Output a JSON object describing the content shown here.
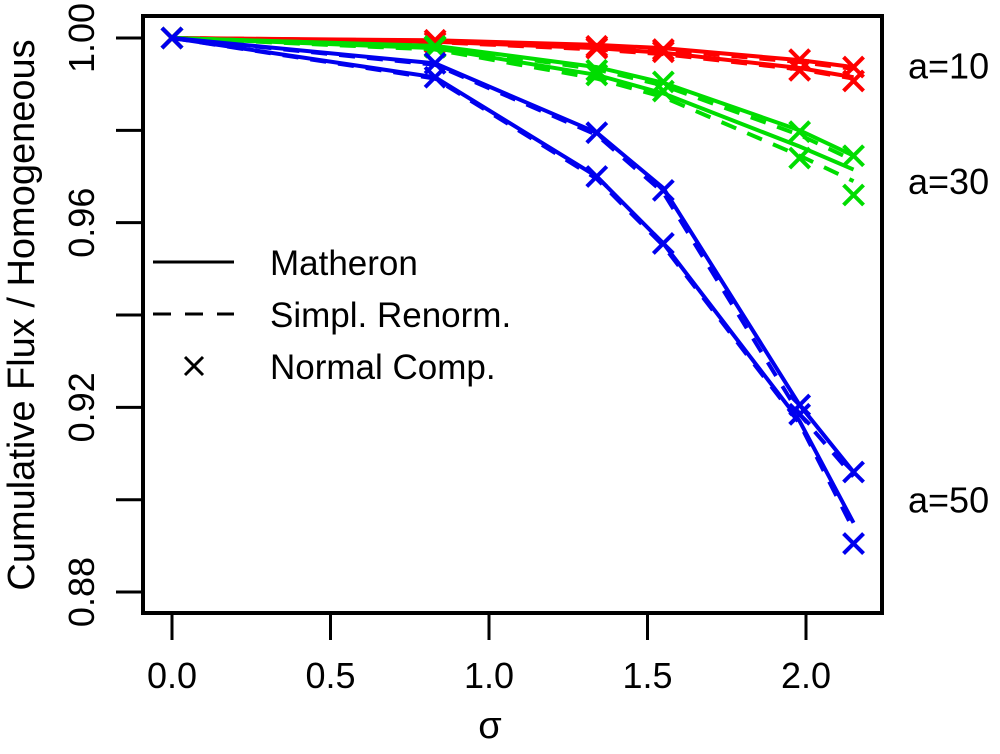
{
  "chart_data": {
    "type": "line",
    "title": "",
    "xlabel": "σ",
    "ylabel": "Cumulative Flux / Homogeneous",
    "xlim": [
      -0.08,
      2.25
    ],
    "ylim": [
      0.874,
      1.005
    ],
    "x_ticks": [
      0.0,
      0.5,
      1.0,
      1.5,
      2.0
    ],
    "x_tick_labels": [
      "0.0",
      "0.5",
      "1.0",
      "1.5",
      "2.0"
    ],
    "y_ticks": [
      0.88,
      0.9,
      0.92,
      0.94,
      0.96,
      0.98,
      1.0
    ],
    "y_tick_labels": [
      "0.88",
      "",
      "0.92",
      "",
      "0.96",
      "",
      "1.00"
    ],
    "grid": false,
    "legend": {
      "position": "center-left",
      "entries": [
        {
          "label": "Matheron",
          "style": "solid"
        },
        {
          "label": "Simpl. Renorm.",
          "style": "dashed"
        },
        {
          "label": "Normal Comp.",
          "style": "cross"
        }
      ]
    },
    "annotations": [
      {
        "text": "a=10",
        "y": 0.994
      },
      {
        "text": "a=30",
        "y": 0.969
      },
      {
        "text": "a=50",
        "y": 0.9
      }
    ],
    "x": [
      0.0,
      0.83,
      1.34,
      1.55,
      1.98,
      2.15
    ],
    "groups": [
      {
        "name": "a=10",
        "color": "#ff0000",
        "curves": [
          {
            "matheron": [
              1.0,
              0.9995,
              0.9985,
              0.9978,
              0.9952,
              0.9937
            ],
            "simpl_renorm": [
              1.0,
              0.9994,
              0.9982,
              0.9974,
              0.9948,
              0.9933
            ],
            "normal_comp": [
              1.0,
              0.9995,
              0.9982,
              0.9975,
              0.9953,
              0.9937
            ]
          },
          {
            "matheron": [
              1.0,
              0.9992,
              0.9978,
              0.9968,
              0.9935,
              0.9915
            ],
            "simpl_renorm": [
              1.0,
              0.9991,
              0.9975,
              0.9965,
              0.9932,
              0.9912
            ],
            "normal_comp": [
              1.0,
              0.999,
              0.9978,
              0.997,
              0.993,
              0.9907
            ]
          }
        ]
      },
      {
        "name": "a=30",
        "color": "#00dd00",
        "curves": [
          {
            "matheron": [
              1.0,
              0.9983,
              0.9937,
              0.9903,
              0.98,
              0.9745
            ],
            "simpl_renorm": [
              1.0,
              0.9982,
              0.9932,
              0.9897,
              0.979,
              0.9735
            ],
            "normal_comp": [
              1.0,
              0.9982,
              0.993,
              0.9905,
              0.9797,
              0.9745
            ]
          },
          {
            "matheron": [
              1.0,
              0.9978,
              0.992,
              0.988,
              0.9765,
              0.9715
            ],
            "simpl_renorm": [
              1.0,
              0.9975,
              0.9912,
              0.9872,
              0.9745,
              0.969
            ],
            "normal_comp": [
              1.0,
              0.998,
              0.992,
              0.9885,
              0.974,
              0.966
            ]
          }
        ]
      },
      {
        "name": "a=50",
        "color": "#0000ee",
        "curves": [
          {
            "matheron": [
              1.0,
              0.9945,
              0.9795,
              0.9675,
              0.9205,
              0.906
            ],
            "simpl_renorm": [
              1.0,
              0.9942,
              0.979,
              0.9665,
              0.9185,
              0.905
            ],
            "normal_comp": [
              1.0,
              0.9945,
              0.9795,
              0.967,
              0.9205,
              0.906
            ]
          },
          {
            "matheron": [
              1.0,
              0.9915,
              0.97,
              0.9555,
              0.917,
              0.895
            ],
            "simpl_renorm": [
              1.0,
              0.9912,
              0.9695,
              0.955,
              0.9165,
              0.8935
            ],
            "normal_comp": [
              1.0,
              0.9915,
              0.97,
              0.9555,
              0.9185,
              0.8905
            ]
          }
        ]
      }
    ]
  }
}
